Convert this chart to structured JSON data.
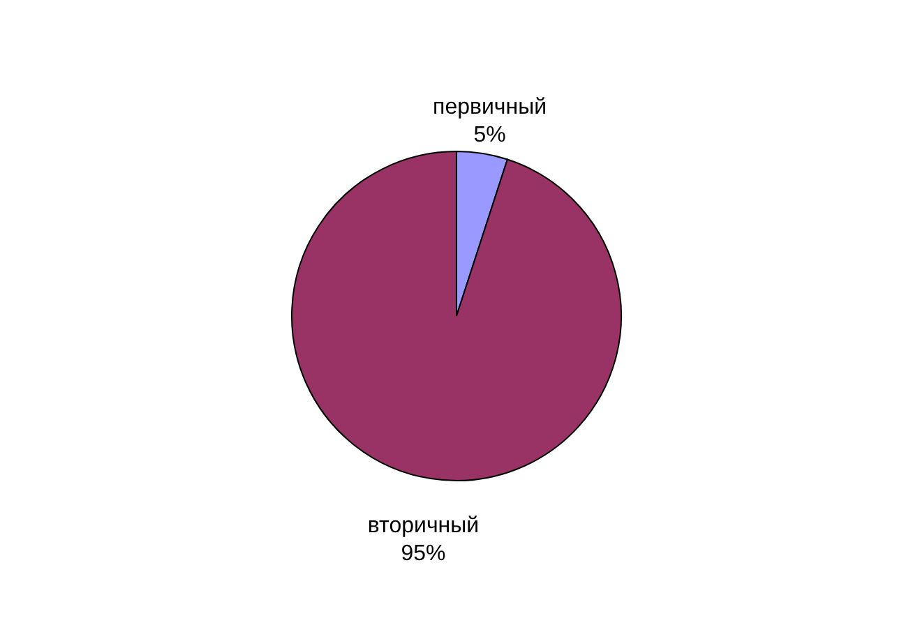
{
  "chart_data": {
    "type": "pie",
    "categories": [
      "первичный",
      "вторичный"
    ],
    "values": [
      5,
      95
    ],
    "colors": [
      "#9999ff",
      "#993366"
    ],
    "value_labels": [
      "5%",
      "95%"
    ]
  }
}
